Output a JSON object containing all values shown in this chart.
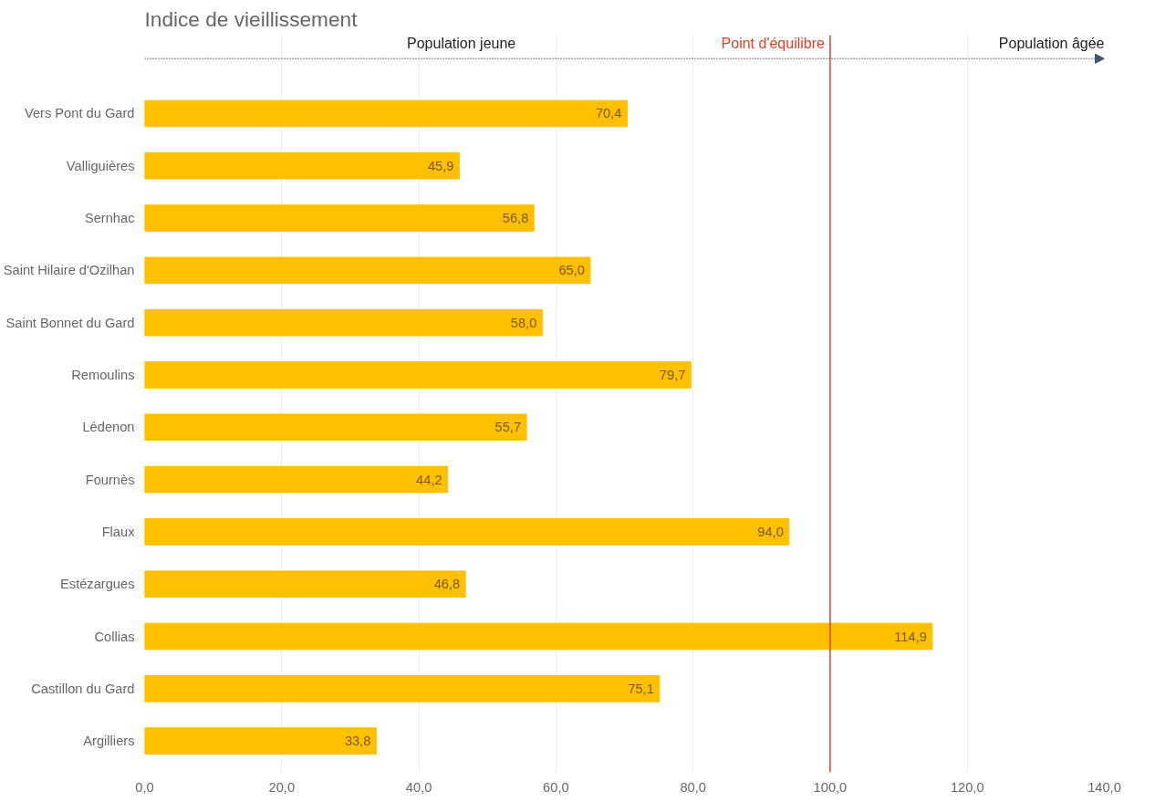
{
  "chart_data": {
    "type": "bar",
    "orientation": "horizontal",
    "title": "Indice de vieillissement",
    "categories": [
      "Vers Pont du Gard",
      "Valliguières",
      "Sernhac",
      "Saint Hilaire d'Ozilhan",
      "Saint Bonnet du Gard",
      "Remoulins",
      "Lédenon",
      "Fournès",
      "Flaux",
      "Estézargues",
      "Collias",
      "Castillon du Gard",
      "Argilliers"
    ],
    "values": [
      70.4,
      45.9,
      56.8,
      65.0,
      58.0,
      79.7,
      55.7,
      44.2,
      94.0,
      46.8,
      114.9,
      75.1,
      33.8
    ],
    "value_labels": [
      "70,4",
      "45,9",
      "56,8",
      "65,0",
      "58,0",
      "79,7",
      "55,7",
      "44,2",
      "94,0",
      "46,8",
      "114,9",
      "75,1",
      "33,8"
    ],
    "color": "#ffc000",
    "xlim": [
      0,
      140
    ],
    "xticks": [
      {
        "value": 0,
        "label": "0,0"
      },
      {
        "value": 20,
        "label": "20,0"
      },
      {
        "value": 40,
        "label": "40,0"
      },
      {
        "value": 60,
        "label": "60,0"
      },
      {
        "value": 80,
        "label": "80,0"
      },
      {
        "value": 100,
        "label": "100,0"
      },
      {
        "value": 120,
        "label": "120,0"
      },
      {
        "value": 140,
        "label": "140,0"
      }
    ],
    "grid": "x",
    "ref_lines": [
      {
        "axis": "x",
        "value": 100,
        "label": "Point d'équilibre",
        "color": "#e0402a"
      }
    ],
    "annotations": [
      "Population jeune",
      "Population âgée"
    ]
  }
}
